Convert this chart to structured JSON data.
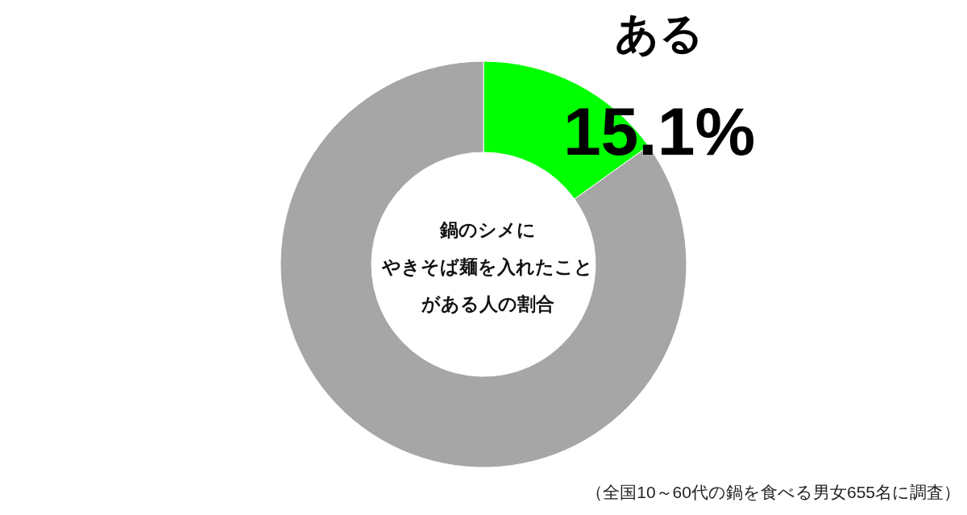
{
  "chart_data": {
    "type": "donut",
    "title": "鍋のシメにやきそば麺を入れたことがある人の割合",
    "categories": [
      "ある",
      null
    ],
    "values": [
      15.1,
      84.9
    ],
    "colors": [
      "#00ff00",
      "#a6a6a6"
    ],
    "value_labels": [
      "15.1%",
      null
    ],
    "annotations": [
      "（全国10～60代の鍋を食べる男女655名に調査）"
    ]
  }
}
